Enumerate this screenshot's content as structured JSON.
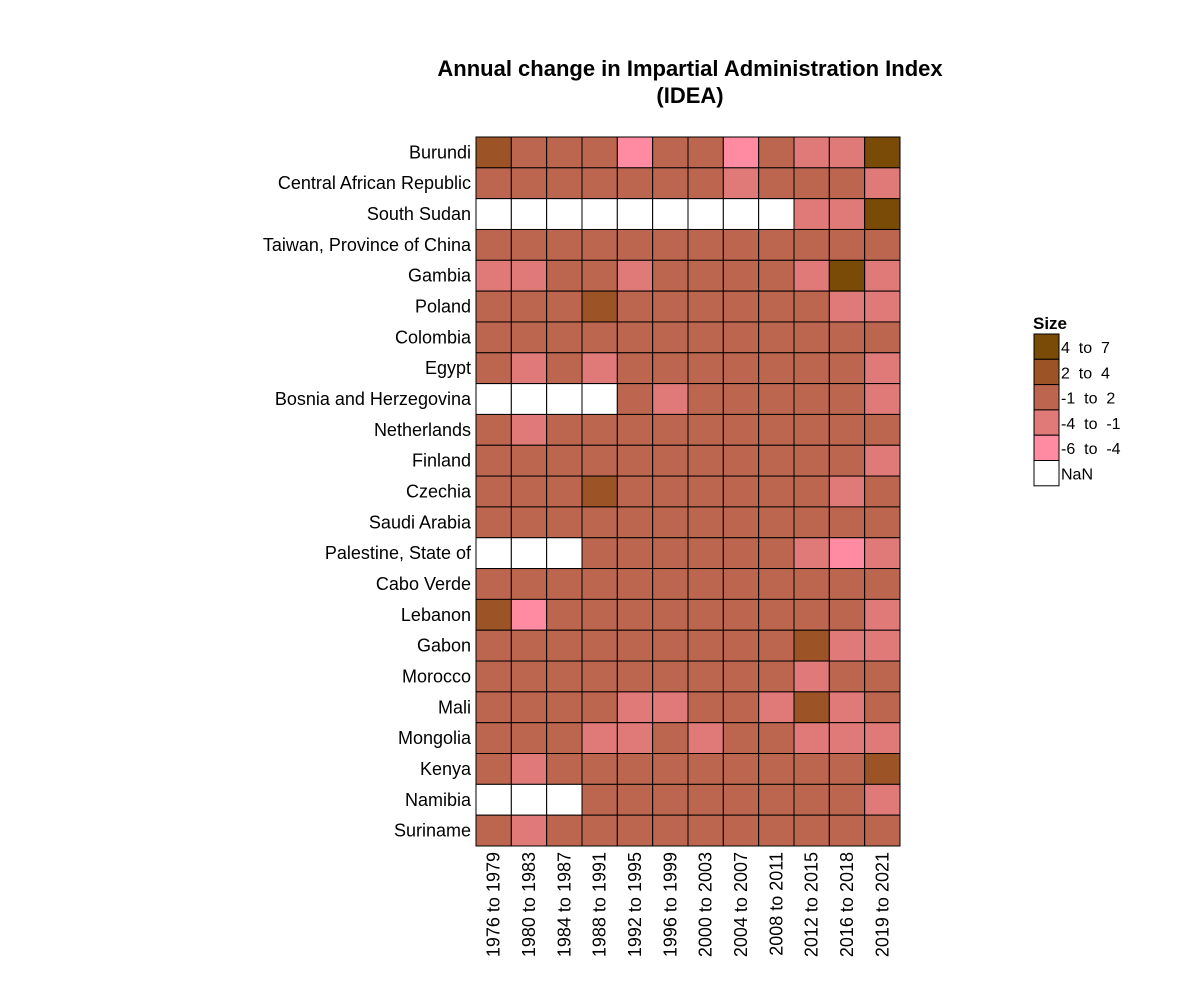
{
  "chart_data": {
    "type": "heatmap",
    "title": [
      "Annual change in Impartial Administration Index",
      "(IDEA)"
    ],
    "rows": [
      "Burundi",
      "Central African Republic",
      "South Sudan",
      "Taiwan, Province of China",
      "Gambia",
      "Poland",
      "Colombia",
      "Egypt",
      "Bosnia and Herzegovina",
      "Netherlands",
      "Finland",
      "Czechia",
      "Saudi Arabia",
      "Palestine, State of",
      "Cabo Verde",
      "Lebanon",
      "Gabon",
      "Morocco",
      "Mali",
      "Mongolia",
      "Kenya",
      "Namibia",
      "Suriname"
    ],
    "columns": [
      "1976 to 1979",
      "1980 to 1983",
      "1984 to 1987",
      "1988 to 1991",
      "1992 to 1995",
      "1996 to 1999",
      "2000 to 2003",
      "2004 to 2007",
      "2008 to 2011",
      "2012 to 2015",
      "2016 to 2018",
      "2019 to 2021"
    ],
    "legend": {
      "title": "Size",
      "position": "right",
      "categories": [
        {
          "label": "4  to  7",
          "color": "#7a4a07"
        },
        {
          "label": "2  to  4",
          "color": "#9c5427"
        },
        {
          "label": "-1  to  2",
          "color": "#bd664f"
        },
        {
          "label": "-4  to  -1",
          "color": "#e07a78"
        },
        {
          "label": "-6  to  -4",
          "color": "#fe8ba1"
        },
        {
          "label": "NaN",
          "color": "#ffffff"
        }
      ]
    },
    "cells": [
      [
        1,
        2,
        2,
        2,
        4,
        2,
        2,
        4,
        2,
        3,
        3,
        0
      ],
      [
        2,
        2,
        2,
        2,
        2,
        2,
        2,
        3,
        2,
        2,
        2,
        3
      ],
      [
        5,
        5,
        5,
        5,
        5,
        5,
        5,
        5,
        5,
        3,
        3,
        0
      ],
      [
        2,
        2,
        2,
        2,
        2,
        2,
        2,
        2,
        2,
        2,
        2,
        2
      ],
      [
        3,
        3,
        2,
        2,
        3,
        2,
        2,
        2,
        2,
        3,
        0,
        3
      ],
      [
        2,
        2,
        2,
        1,
        2,
        2,
        2,
        2,
        2,
        2,
        3,
        3
      ],
      [
        2,
        2,
        2,
        2,
        2,
        2,
        2,
        2,
        2,
        2,
        2,
        2
      ],
      [
        2,
        3,
        2,
        3,
        2,
        2,
        2,
        2,
        2,
        2,
        2,
        3
      ],
      [
        5,
        5,
        5,
        5,
        2,
        3,
        2,
        2,
        2,
        2,
        2,
        3
      ],
      [
        2,
        3,
        2,
        2,
        2,
        2,
        2,
        2,
        2,
        2,
        2,
        2
      ],
      [
        2,
        2,
        2,
        2,
        2,
        2,
        2,
        2,
        2,
        2,
        2,
        3
      ],
      [
        2,
        2,
        2,
        1,
        2,
        2,
        2,
        2,
        2,
        2,
        3,
        2
      ],
      [
        2,
        2,
        2,
        2,
        2,
        2,
        2,
        2,
        2,
        2,
        2,
        2
      ],
      [
        5,
        5,
        5,
        2,
        2,
        2,
        2,
        2,
        2,
        3,
        4,
        3
      ],
      [
        2,
        2,
        2,
        2,
        2,
        2,
        2,
        2,
        2,
        2,
        2,
        2
      ],
      [
        1,
        4,
        2,
        2,
        2,
        2,
        2,
        2,
        2,
        2,
        2,
        3
      ],
      [
        2,
        2,
        2,
        2,
        2,
        2,
        2,
        2,
        2,
        1,
        3,
        3
      ],
      [
        2,
        2,
        2,
        2,
        2,
        2,
        2,
        2,
        2,
        3,
        2,
        2
      ],
      [
        2,
        2,
        2,
        2,
        3,
        3,
        2,
        2,
        3,
        1,
        3,
        2
      ],
      [
        2,
        2,
        2,
        3,
        3,
        2,
        3,
        2,
        2,
        3,
        3,
        3
      ],
      [
        2,
        3,
        2,
        2,
        2,
        2,
        2,
        2,
        2,
        2,
        2,
        1
      ],
      [
        5,
        5,
        5,
        2,
        2,
        2,
        2,
        2,
        2,
        2,
        2,
        3
      ],
      [
        2,
        3,
        2,
        2,
        2,
        2,
        2,
        2,
        2,
        2,
        2,
        2
      ]
    ]
  }
}
